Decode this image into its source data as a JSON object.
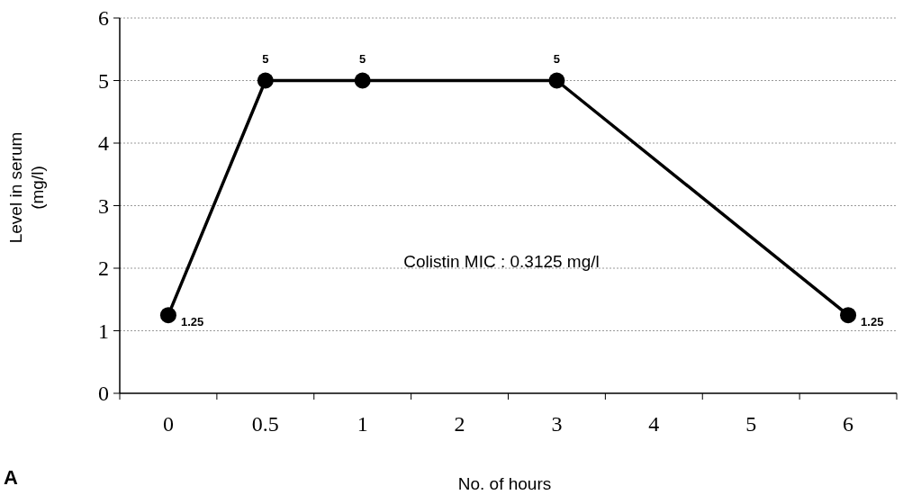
{
  "chart_data": {
    "type": "line",
    "xlabel": "No. of hours",
    "ylabel": "Level in serum (mg/l)",
    "categories": [
      "0",
      "0.5",
      "1",
      "2",
      "3",
      "4",
      "5",
      "6"
    ],
    "series": [
      {
        "color": "#000000",
        "values": [
          1.25,
          5,
          5,
          null,
          5,
          null,
          null,
          1.25
        ]
      }
    ],
    "ylim": [
      0,
      6
    ],
    "yticks": [
      0,
      1,
      2,
      3,
      4,
      5,
      6
    ],
    "grid": "y",
    "marker": "circle",
    "line_style": "solid",
    "data_labels": true,
    "annotations": [
      {
        "text": "Colistin MIC : 0.3125 mg/l"
      },
      {
        "text": "A"
      }
    ]
  }
}
